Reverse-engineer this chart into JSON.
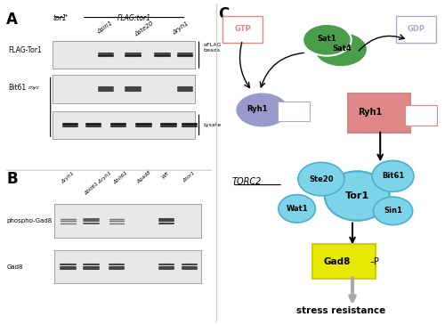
{
  "panel_A_label": "A",
  "panel_B_label": "B",
  "panel_C_label": "C",
  "panel_A_header1": "tor1",
  "panel_A_header1_sup": "+",
  "panel_A_header2": "FLAG:tor1",
  "panel_A_col_labels": [
    "Δsin1",
    "Δste20",
    "Δryh1"
  ],
  "panel_A_row1": "FLAG-Tor1",
  "panel_A_row2_a": "Bit61",
  "panel_A_row2_b": "myc",
  "panel_A_annot1": "αFLAG\nbeads",
  "panel_A_annot2": "Lysate",
  "panel_B_col_labels": [
    "Δryh1",
    "Δbit61 Δryh1",
    "Δbit61",
    "Δgad8",
    "WT",
    "Δtor1"
  ],
  "panel_B_row1": "phospho-Gad8",
  "panel_B_row2": "Gad8",
  "sat1_sat4_color": "#4a9e4a",
  "ryh1_gdp_color": "#9999cc",
  "ryh1_gtp_color": "#e08888",
  "gtp_box_color": "#e08888",
  "gdp_box_color": "#aaaacc",
  "torc2_color": "#7dd4e8",
  "gad8_color": "#e8e800",
  "stress_color": "#aaaaaa"
}
